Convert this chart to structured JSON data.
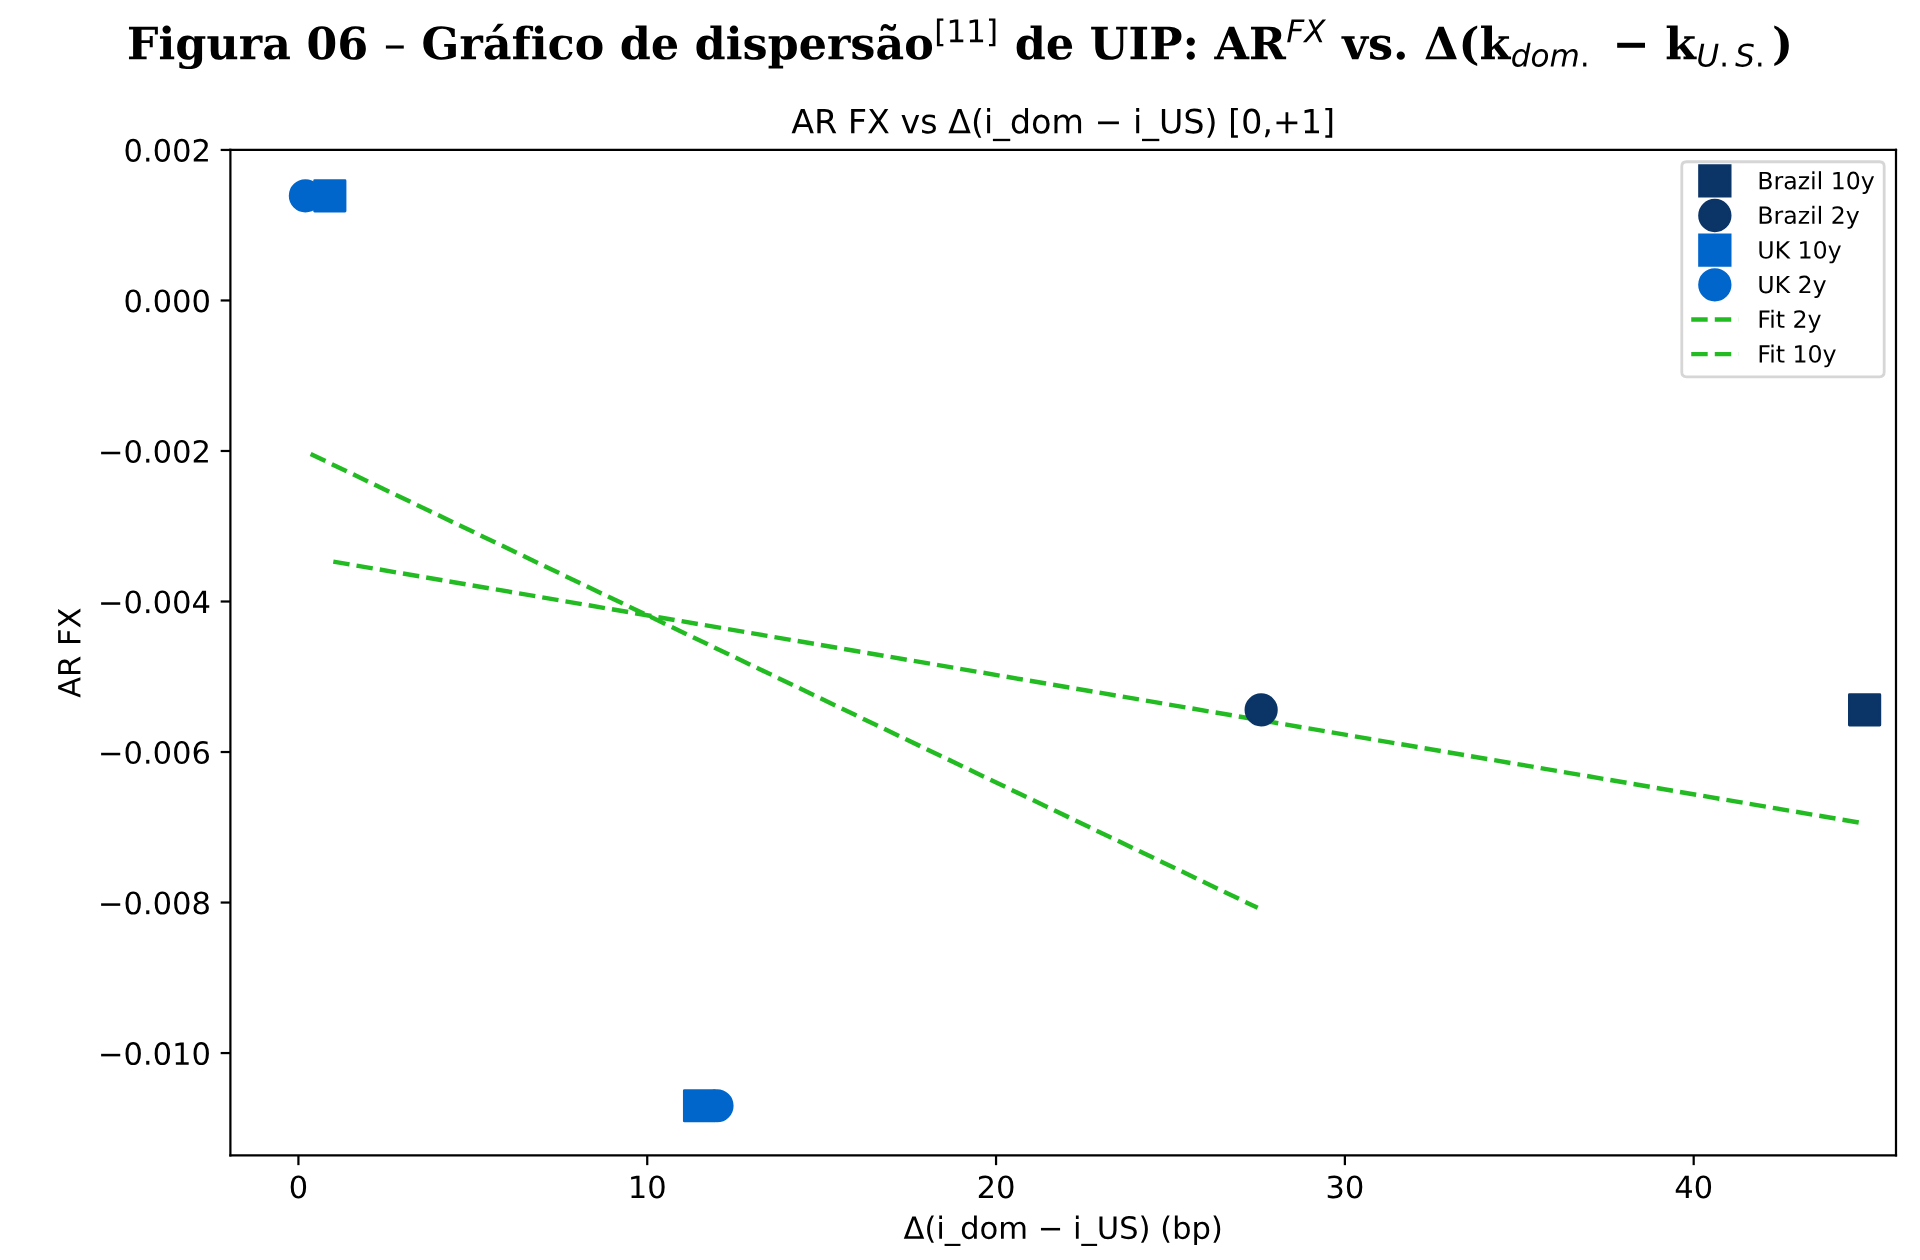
{
  "chart_data": {
    "type": "scatter",
    "title": "Figura 06 – Gráfico de dispersão$^{[11]}$ de UIP: AR$^{FX}$ vs. Δ(k$_{dom.}$ − k$_{U.S.}$)",
    "subtitle": "AR FX vs Δ(i_dom − i_US) [0,+1]",
    "xlabel": "Δ(i_dom − i_US) (bp)",
    "ylabel": "AR FX",
    "series": [
      {
        "name": "Brazil 10y",
        "marker": "square",
        "color": "#0b3467",
        "x": [
          44.9
        ],
        "values": [
          -0.00544
        ]
      },
      {
        "name": "Brazil 2y",
        "marker": "circle",
        "color": "#0b3467",
        "x": [
          27.6
        ],
        "values": [
          -0.00544
        ]
      },
      {
        "name": "UK 10y",
        "marker": "square",
        "color": "#0066cc",
        "x": [
          0.9,
          11.5
        ],
        "values": [
          0.00139,
          -0.0107
        ]
      },
      {
        "name": "UK 2y",
        "marker": "circle",
        "color": "#0066cc",
        "x": [
          0.2,
          12.0
        ],
        "values": [
          0.00139,
          -0.0107
        ]
      },
      {
        "name": "Fit 2y",
        "type": "line",
        "marker": "none",
        "line_style": "dashed",
        "color": "#22bb22",
        "x": [
          0.35,
          27.5
        ],
        "values": [
          -0.00204,
          -0.00807
        ]
      },
      {
        "name": "Fit 10y",
        "type": "line",
        "marker": "none",
        "line_style": "dashed",
        "color": "#22bb22",
        "x": [
          1.0,
          44.9
        ],
        "values": [
          -0.00347,
          -0.00695
        ]
      }
    ],
    "xlim": [
      -1.95,
      45.8
    ],
    "xticks": [
      0,
      10,
      20,
      30,
      40
    ],
    "ylim": [
      -0.01136,
      0.002
    ],
    "yticks": [
      {
        "value": 0.002,
        "label": "0.002"
      },
      {
        "value": 0.0,
        "label": "0.000"
      },
      {
        "value": -0.002,
        "label": "−0.002"
      },
      {
        "value": -0.004,
        "label": "−0.004"
      },
      {
        "value": -0.006,
        "label": "−0.006"
      },
      {
        "value": -0.008,
        "label": "−0.008"
      },
      {
        "value": -0.01,
        "label": "−0.010"
      }
    ],
    "grid": false,
    "legend": "top right"
  }
}
